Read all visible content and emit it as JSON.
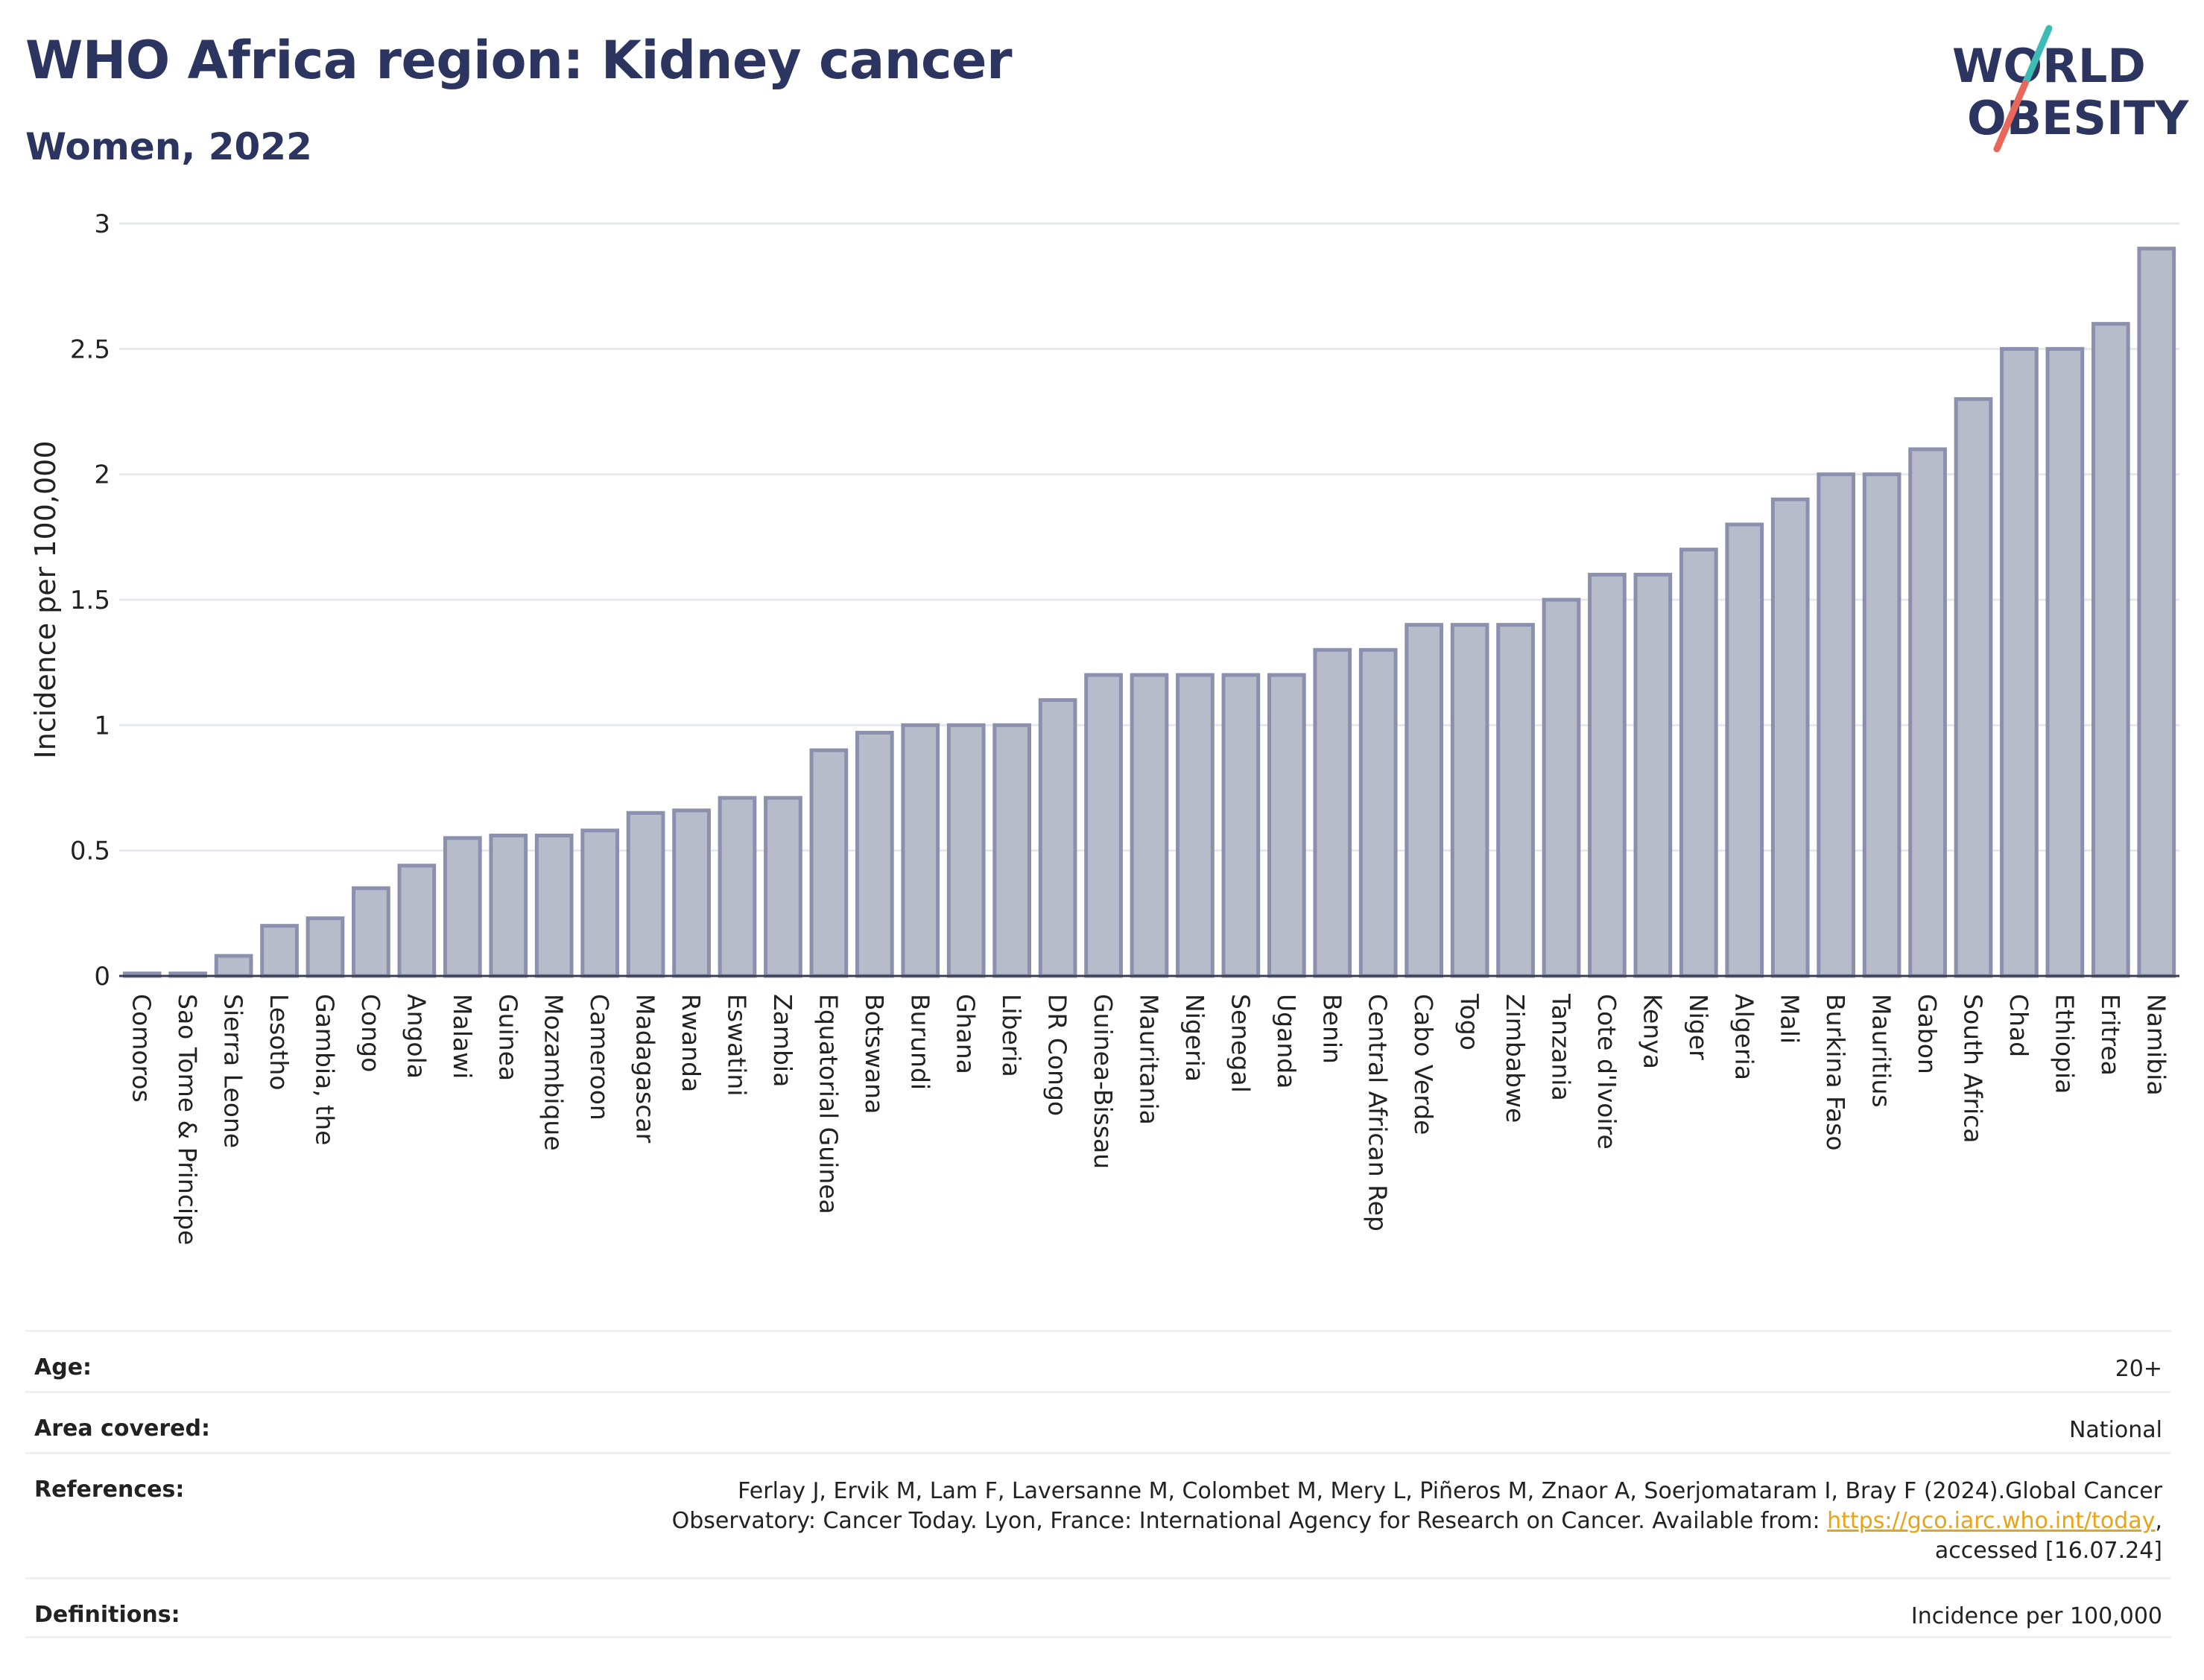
{
  "header": {
    "title": "WHO Africa region: Kidney cancer",
    "subtitle": "Women, 2022"
  },
  "logo": {
    "line1": "WORLD",
    "line2": "OBESITY",
    "text_color": "#2b3560",
    "slash_colors": [
      "#3cbcb4",
      "#e8665a"
    ]
  },
  "chart_data": {
    "type": "bar",
    "title": "WHO Africa region: Kidney cancer",
    "subtitle": "Women, 2022",
    "xlabel": "",
    "ylabel": "Incidence per 100,000",
    "ylim": [
      0,
      3
    ],
    "yticks": [
      0,
      0.5,
      1,
      1.5,
      2,
      2.5,
      3
    ],
    "ytick_labels": [
      "0",
      "0.5",
      "1",
      "1.5",
      "2",
      "2.5",
      "3"
    ],
    "grid": true,
    "bar_fill": "#b8bcca",
    "bar_stroke": "#8a90ad",
    "categories": [
      "Comoros",
      "Sao Tome & Principe",
      "Sierra Leone",
      "Lesotho",
      "Gambia, the",
      "Congo",
      "Angola",
      "Malawi",
      "Guinea",
      "Mozambique",
      "Cameroon",
      "Madagascar",
      "Rwanda",
      "Eswatini",
      "Zambia",
      "Equatorial Guinea",
      "Botswana",
      "Burundi",
      "Ghana",
      "Liberia",
      "DR Congo",
      "Guinea-Bissau",
      "Mauritania",
      "Nigeria",
      "Senegal",
      "Uganda",
      "Benin",
      "Central African Rep",
      "Cabo Verde",
      "Togo",
      "Zimbabwe",
      "Tanzania",
      "Cote d'Ivoire",
      "Kenya",
      "Niger",
      "Algeria",
      "Mali",
      "Burkina Faso",
      "Mauritius",
      "Gabon",
      "South Africa",
      "Chad",
      "Ethiopia",
      "Eritrea",
      "Namibia"
    ],
    "values": [
      0.01,
      0.01,
      0.08,
      0.2,
      0.23,
      0.35,
      0.44,
      0.55,
      0.56,
      0.56,
      0.58,
      0.65,
      0.66,
      0.71,
      0.71,
      0.9,
      0.97,
      1.0,
      1.0,
      1.0,
      1.1,
      1.2,
      1.2,
      1.2,
      1.2,
      1.2,
      1.3,
      1.3,
      1.4,
      1.4,
      1.4,
      1.5,
      1.6,
      1.6,
      1.7,
      1.8,
      1.9,
      2.0,
      2.0,
      2.1,
      2.3,
      2.5,
      2.5,
      2.6,
      2.9
    ]
  },
  "meta": {
    "rows": [
      {
        "label": "Age:",
        "value": "20+"
      },
      {
        "label": "Area covered:",
        "value": "National"
      },
      {
        "label": "References:",
        "value_line1": "Ferlay J, Ervik M, Lam F, Laversanne M, Colombet M, Mery L, Piñeros M, Znaor A, Soerjomataram I, Bray F (2024).Global Cancer",
        "value_line2_pre": "Observatory: Cancer Today. Lyon, France: International Agency for Research on Cancer. Available from: ",
        "value_link": "https://gco.iarc.who.int/today",
        "value_line2_post": ",",
        "value_line3": "accessed [16.07.24]"
      },
      {
        "label": "Definitions:",
        "value": "Incidence per 100,000"
      }
    ]
  }
}
